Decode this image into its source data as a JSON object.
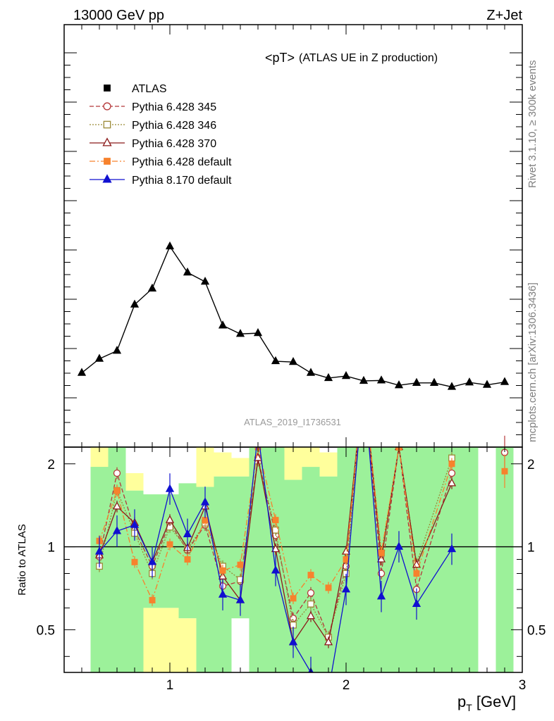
{
  "header": {
    "left": "13000 GeV pp",
    "right": "Z+Jet"
  },
  "side": {
    "rivet": "Rivet 3.1.10, ≥ 300k events",
    "mcplots": "mcplots.cern.ch [arXiv:1306.3436]"
  },
  "chart_data": [
    {
      "type": "line",
      "title_main": "<pT>",
      "title_sub": "(ATLAS UE in Z production)",
      "watermark": "ATLAS_2019_I1736531",
      "xlim": [
        0.4,
        3.0
      ],
      "ylim": [
        0.0,
        1.0
      ],
      "yticks_shown": false,
      "legend_position": "top-left",
      "series": [
        {
          "name": "Pythia 8.170 default",
          "color": "#000000",
          "marker": "triangle",
          "x": [
            0.5,
            0.6,
            0.7,
            0.8,
            0.9,
            1.0,
            1.1,
            1.2,
            1.3,
            1.4,
            1.5,
            1.6,
            1.7,
            1.8,
            1.9,
            2.0,
            2.1,
            2.2,
            2.3,
            2.4,
            2.5,
            2.6,
            2.7,
            2.8,
            2.9
          ],
          "y": [
            0.185,
            0.22,
            0.24,
            0.355,
            0.395,
            0.5,
            0.435,
            0.412,
            0.303,
            0.282,
            0.284,
            0.214,
            0.212,
            0.185,
            0.172,
            0.177,
            0.165,
            0.166,
            0.154,
            0.16,
            0.16,
            0.15,
            0.161,
            0.155,
            0.162
          ]
        }
      ],
      "legend": [
        {
          "name": "ATLAS",
          "color": "#000000",
          "marker": "square-filled",
          "line": "none"
        },
        {
          "name": "Pythia 6.428 345",
          "color": "#b5383a",
          "marker": "circle-open",
          "line": "dashed"
        },
        {
          "name": "Pythia 6.428 346",
          "color": "#9b8a36",
          "marker": "square-open",
          "line": "dotted"
        },
        {
          "name": "Pythia 6.428 370",
          "color": "#8b1a1a",
          "marker": "triangle-open",
          "line": "solid"
        },
        {
          "name": "Pythia 6.428 default",
          "color": "#f7822d",
          "marker": "square-filled",
          "line": "dashdot"
        },
        {
          "name": "Pythia 8.170 default",
          "color": "#1010d0",
          "marker": "triangle-filled",
          "line": "solid"
        }
      ]
    },
    {
      "type": "line",
      "ylabel": "Ratio to ATLAS",
      "xlabel": "p",
      "xlabel_sub": "T",
      "xlabel_unit": " [GeV]",
      "xlim": [
        0.4,
        3.0
      ],
      "ylim": [
        0.35,
        2.3
      ],
      "log_y": true,
      "xticks": [
        "1",
        "2",
        "3"
      ],
      "yticks": [
        "0.5",
        "1",
        "2"
      ],
      "bands": [
        {
          "x": [
            0.55,
            0.65
          ],
          "green": [
            0.35,
            2.3
          ],
          "yellow": [
            1.95,
            2.3
          ]
        },
        {
          "x": [
            0.65,
            0.75
          ],
          "green": [
            0.35,
            2.3
          ],
          "yellow": null
        },
        {
          "x": [
            0.75,
            0.85
          ],
          "green": [
            0.35,
            1.6
          ],
          "yellow": [
            1.6,
            1.85
          ]
        },
        {
          "x": [
            0.85,
            0.95
          ],
          "green": [
            0.6,
            1.55
          ],
          "yellow": [
            0.35,
            0.6
          ]
        },
        {
          "x": [
            0.95,
            1.05
          ],
          "green": [
            0.6,
            1.55
          ],
          "yellow": [
            0.35,
            0.6
          ]
        },
        {
          "x": [
            1.05,
            1.15
          ],
          "green": [
            0.55,
            1.7
          ],
          "yellow": [
            0.35,
            0.55
          ]
        },
        {
          "x": [
            1.15,
            1.25
          ],
          "green": [
            0.35,
            1.65
          ],
          "yellow": [
            1.65,
            2.3
          ]
        },
        {
          "x": [
            1.25,
            1.35
          ],
          "green": [
            0.35,
            1.8
          ],
          "yellow": [
            1.8,
            2.2
          ]
        },
        {
          "x": [
            1.35,
            1.45
          ],
          "green": [
            0.55,
            1.8
          ],
          "yellow": [
            1.8,
            2.1
          ]
        },
        {
          "x": [
            1.45,
            1.55
          ],
          "green": [
            0.35,
            2.3
          ],
          "yellow": null
        },
        {
          "x": [
            1.55,
            1.65
          ],
          "green": [
            0.35,
            2.3
          ],
          "yellow": null
        },
        {
          "x": [
            1.65,
            1.75
          ],
          "green": [
            0.35,
            1.75
          ],
          "yellow": [
            1.75,
            2.3
          ]
        },
        {
          "x": [
            1.75,
            1.85
          ],
          "green": [
            0.35,
            1.95
          ],
          "yellow": [
            1.95,
            2.3
          ]
        },
        {
          "x": [
            1.85,
            1.95
          ],
          "green": [
            0.35,
            1.8
          ],
          "yellow": [
            1.8,
            2.2
          ]
        },
        {
          "x": [
            1.95,
            2.05
          ],
          "green": [
            0.35,
            2.3
          ],
          "yellow": null
        },
        {
          "x": [
            2.05,
            2.75
          ],
          "green": [
            0.35,
            2.3
          ],
          "yellow": null
        },
        {
          "x": [
            2.85,
            2.95
          ],
          "green": [
            0.35,
            2.3
          ],
          "yellow": null
        }
      ],
      "ref_line": 1.0,
      "series": [
        {
          "name": "Pythia 6.428 345",
          "color": "#b5383a",
          "marker": "circle-open",
          "dash": "6,3",
          "x": [
            0.6,
            0.7,
            0.8,
            0.9,
            1.0,
            1.1,
            1.2,
            1.3,
            1.4,
            1.5,
            1.6,
            1.7,
            1.8,
            1.9,
            2.0,
            2.1,
            2.2,
            2.3,
            2.4,
            2.6
          ],
          "y": [
            0.92,
            1.85,
            1.15,
            0.85,
            1.22,
            0.97,
            1.2,
            0.72,
            0.75,
            2.1,
            1.1,
            0.55,
            0.68,
            0.47,
            0.85,
            4.0,
            0.8,
            2.3,
            0.7,
            1.85
          ]
        },
        {
          "name": "Pythia 6.428 346",
          "color": "#9b8a36",
          "marker": "square-open",
          "dash": "2,2",
          "x": [
            0.6,
            0.7,
            0.8,
            0.9,
            1.0,
            1.1,
            1.2,
            1.3,
            1.4,
            1.5,
            1.6,
            1.7,
            1.8,
            1.9,
            2.0,
            2.1,
            2.2,
            2.3,
            2.4,
            2.6
          ],
          "y": [
            0.85,
            1.6,
            1.12,
            0.8,
            1.18,
            0.98,
            1.22,
            0.85,
            0.76,
            2.05,
            1.15,
            0.52,
            0.62,
            0.47,
            0.8,
            4.0,
            0.95,
            2.3,
            0.87,
            2.1
          ]
        },
        {
          "name": "Pythia 6.428 370",
          "color": "#8b1a1a",
          "marker": "triangle-open",
          "dash": "",
          "x": [
            0.6,
            0.7,
            0.8,
            0.9,
            1.0,
            1.1,
            1.2,
            1.3,
            1.4,
            1.5,
            1.6,
            1.7,
            1.8,
            1.9,
            2.0,
            2.1,
            2.2,
            2.3,
            2.4,
            2.6
          ],
          "y": [
            0.93,
            1.4,
            1.22,
            0.88,
            1.25,
            0.99,
            1.4,
            0.78,
            0.64,
            2.1,
            0.98,
            0.45,
            0.56,
            0.45,
            0.96,
            4.0,
            0.9,
            2.3,
            0.86,
            1.7
          ]
        },
        {
          "name": "Pythia 6.428 default",
          "color": "#f7822d",
          "marker": "square-filled",
          "dash": "8,3,2,3",
          "x": [
            0.6,
            0.7,
            0.8,
            0.9,
            1.0,
            1.1,
            1.2,
            1.3,
            1.4,
            1.5,
            1.6,
            1.7,
            1.8,
            1.9,
            2.0,
            2.1,
            2.2,
            2.3,
            2.4,
            2.6
          ],
          "y": [
            1.05,
            1.6,
            0.88,
            0.64,
            1.02,
            0.9,
            1.25,
            0.82,
            0.86,
            2.3,
            1.25,
            0.65,
            0.79,
            0.71,
            0.9,
            4.0,
            0.95,
            2.3,
            0.8,
            2.0
          ]
        },
        {
          "name": "Pythia 8.170 default",
          "color": "#1010d0",
          "marker": "triangle-filled",
          "dash": "",
          "x": [
            0.6,
            0.7,
            0.8,
            0.9,
            1.0,
            1.1,
            1.2,
            1.3,
            1.4,
            1.5,
            1.6,
            1.7,
            1.8,
            1.9,
            2.0,
            2.1,
            2.2,
            2.3,
            2.4,
            2.6
          ],
          "y": [
            0.96,
            1.14,
            1.2,
            0.88,
            1.62,
            1.11,
            1.45,
            0.67,
            0.64,
            2.6,
            0.82,
            0.45,
            0.35,
            0.3,
            0.7,
            4.0,
            0.66,
            1.0,
            0.62,
            0.98
          ]
        }
      ],
      "right_points": [
        {
          "color": "#b5383a",
          "marker": "circle-open",
          "x": 2.9,
          "y": 2.2
        },
        {
          "color": "#f7822d",
          "marker": "square-filled",
          "x": 2.9,
          "y": 1.88
        }
      ]
    }
  ]
}
